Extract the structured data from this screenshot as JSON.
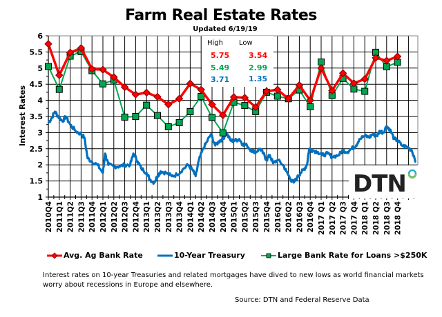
{
  "chart_data": {
    "type": "line",
    "title": "Farm Real Estate Rates",
    "subtitle": "Updated  6/19/19",
    "xlabel": "",
    "ylabel": "Interest Rates",
    "ylim": [
      1,
      6
    ],
    "yticks": [
      "1",
      "1.5",
      "2",
      "2.5",
      "3",
      "3.5",
      "4",
      "4.5",
      "5",
      "5.5",
      "6"
    ],
    "grid": true,
    "legend_position": "bottom",
    "categories": [
      "2010Q4",
      "2011Q1",
      "2011Q2",
      "2011Q3",
      "2011Q4",
      "2012Q1",
      "2012Q2",
      "2012Q3",
      "2012Q4",
      "2013Q1",
      "2013Q2",
      "2013Q3",
      "2013Q4",
      "2014Q1",
      "2014Q2",
      "2014Q3",
      "2014Q4",
      "2015Q1",
      "2015Q2",
      "2015Q3",
      "2015Q4",
      "2016Q1",
      "2016Q2",
      "2016Q3",
      "2016Q4",
      "2017 Q1",
      "2017 Q2",
      "2017 Q3",
      "2017 Q4",
      "2018 Q1",
      "2018 Q2",
      "2018 Q3",
      "2018 Q4"
    ],
    "series": [
      {
        "name": "Avg. Ag Bank Rate",
        "color": "#ff0000",
        "marker": "diamond",
        "values": [
          5.75,
          4.78,
          5.48,
          5.62,
          4.97,
          4.95,
          4.72,
          4.41,
          4.18,
          4.24,
          4.11,
          3.87,
          4.05,
          4.52,
          4.33,
          3.87,
          3.54,
          4.1,
          4.08,
          3.79,
          4.28,
          4.33,
          4.05,
          4.47,
          4.0,
          5.0,
          4.3,
          4.84,
          4.53,
          4.66,
          5.32,
          5.23,
          5.36
        ]
      },
      {
        "name": "10-Year Treasury",
        "color": "#0070c0",
        "marker": "none",
        "x": [
          0,
          0.3,
          0.6,
          0.9,
          1.3,
          1.6,
          2.0,
          2.5,
          3.0,
          3.3,
          3.6,
          4.0,
          4.5,
          5.0,
          5.2,
          5.5,
          6.0,
          6.5,
          7.0,
          7.5,
          7.8,
          8.2,
          8.5,
          9.0,
          9.3,
          9.7,
          10.0,
          10.3,
          10.8,
          11.3,
          11.8,
          12.3,
          12.8,
          13.2,
          13.5,
          13.8,
          14.2,
          14.5,
          14.9,
          15.3,
          15.7,
          16.0,
          16.3,
          16.7,
          17.1,
          17.5,
          17.8,
          18.2,
          18.6,
          19.0,
          19.4,
          19.7,
          20.0,
          20.3,
          20.6,
          21.0,
          21.5,
          21.8,
          22.2,
          22.5,
          22.8,
          23.1,
          23.4,
          23.7,
          23.9,
          24.2,
          24.7,
          25.1,
          25.6,
          26.0,
          26.6,
          27.0,
          27.4,
          27.8,
          28.2,
          28.5,
          29.0,
          29.4,
          29.7,
          30.1,
          30.4,
          30.7,
          31.0,
          31.3,
          31.7,
          32.0,
          32.4,
          32.9,
          33.3,
          33.7
        ],
        "values": [
          3.3,
          3.45,
          3.65,
          3.5,
          3.35,
          3.5,
          3.25,
          3.05,
          2.95,
          2.85,
          2.2,
          2.1,
          2.0,
          1.75,
          2.35,
          2.0,
          1.95,
          1.95,
          2.0,
          2.0,
          2.35,
          2.1,
          1.9,
          1.75,
          1.55,
          1.45,
          1.65,
          1.8,
          1.75,
          1.65,
          1.7,
          1.85,
          2.0,
          1.85,
          1.65,
          2.15,
          2.5,
          2.7,
          2.95,
          2.6,
          2.75,
          2.8,
          3.0,
          2.75,
          2.75,
          2.8,
          2.65,
          2.6,
          2.45,
          2.4,
          2.5,
          2.35,
          2.15,
          2.3,
          2.05,
          2.15,
          2.0,
          1.8,
          1.55,
          1.45,
          1.6,
          1.75,
          1.85,
          2.0,
          2.5,
          2.45,
          2.4,
          2.3,
          2.35,
          2.25,
          2.3,
          2.45,
          2.4,
          2.5,
          2.6,
          2.8,
          2.9,
          2.85,
          2.95,
          2.9,
          3.05,
          3.0,
          3.2,
          3.1,
          2.8,
          2.75,
          2.6,
          2.55,
          2.45,
          2.1
        ]
      },
      {
        "name": "Large Bank Rate for Loans >$250K",
        "color": "#00a651",
        "marker": "square",
        "values": [
          5.05,
          4.34,
          5.37,
          5.51,
          4.92,
          4.51,
          4.63,
          3.48,
          3.5,
          3.85,
          3.53,
          3.18,
          3.31,
          3.65,
          4.12,
          3.47,
          2.99,
          3.94,
          3.84,
          3.65,
          4.25,
          4.13,
          4.05,
          4.32,
          3.8,
          5.19,
          4.15,
          4.68,
          4.35,
          4.28,
          5.49,
          5.04,
          5.18
        ]
      }
    ],
    "annotations": {
      "high_label": "High",
      "low_label": "Low",
      "rows": [
        {
          "high": "5.75",
          "low": "3.54",
          "color": "#ff0000"
        },
        {
          "high": "5.49",
          "low": "2.99",
          "color": "#00a651"
        },
        {
          "high": "3.71",
          "low": "1.35",
          "color": "#0070c0"
        }
      ]
    }
  },
  "note": "Interest rates on 10-year Treasuries and related mortgages have dived to new lows as world financial markets worry about recessions in Europe and elsewhere.",
  "source": "Source: DTN  and Federal Reserve Data",
  "logo": {
    "text": "DTN",
    "accent_color": "#2fa8d8",
    "accent_color2": "#8cc63f"
  }
}
